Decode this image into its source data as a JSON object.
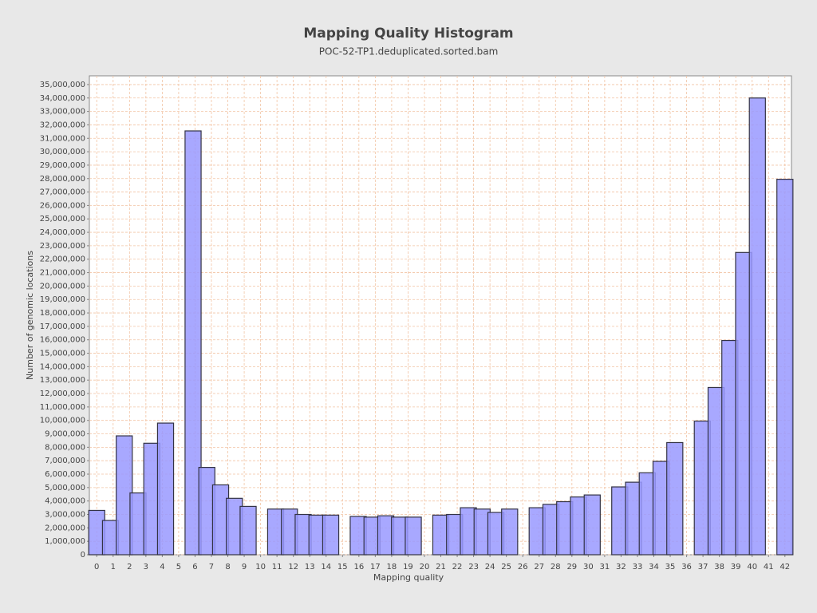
{
  "chart_data": {
    "type": "bar",
    "title": "Mapping Quality Histogram",
    "subtitle": "POC-52-TP1.deduplicated.sorted.bam",
    "x_label": "Mapping quality",
    "y_label": "Number of genomic locations",
    "x": [
      0,
      0.84,
      1.68,
      2.52,
      3.36,
      4.2,
      5.88,
      6.72,
      7.56,
      8.4,
      9.24,
      10.92,
      11.76,
      12.6,
      13.44,
      14.28,
      15.96,
      16.8,
      17.64,
      18.48,
      19.32,
      21,
      21.84,
      22.68,
      23.52,
      24.36,
      25.2,
      26.88,
      27.72,
      28.56,
      29.4,
      30.24,
      31.92,
      32.76,
      33.6,
      34.44,
      35.28,
      36.96,
      37.8,
      38.64,
      39.48,
      40.32,
      42
    ],
    "values": [
      3300000,
      2550000,
      8850000,
      4600000,
      8300000,
      9800000,
      31550000,
      6500000,
      5200000,
      4200000,
      3600000,
      3400000,
      3400000,
      3000000,
      2950000,
      2950000,
      2850000,
      2800000,
      2900000,
      2800000,
      2800000,
      2950000,
      3000000,
      3500000,
      3400000,
      3150000,
      3400000,
      3500000,
      3750000,
      3950000,
      4300000,
      4450000,
      5050000,
      5400000,
      6100000,
      6950000,
      8350000,
      9950000,
      12450000,
      15950000,
      22500000,
      34000000,
      27950000
    ],
    "color": "#9999ff",
    "grid": true,
    "xlim": [
      -0.45,
      42.4
    ],
    "ylim": [
      0,
      35650000
    ],
    "xticks": [
      0,
      1,
      2,
      3,
      4,
      5,
      6,
      7,
      8,
      9,
      10,
      11,
      12,
      13,
      14,
      15,
      16,
      17,
      18,
      19,
      20,
      21,
      22,
      23,
      24,
      25,
      26,
      27,
      28,
      29,
      30,
      31,
      32,
      33,
      34,
      35,
      36,
      37,
      38,
      39,
      40,
      41,
      42
    ],
    "yticks": [
      {
        "value": 0,
        "label": "0"
      },
      {
        "value": 1000000,
        "label": "1,000,000"
      },
      {
        "value": 2000000,
        "label": "2,000,000"
      },
      {
        "value": 3000000,
        "label": "3,000,000"
      },
      {
        "value": 4000000,
        "label": "4,000,000"
      },
      {
        "value": 5000000,
        "label": "5,000,000"
      },
      {
        "value": 6000000,
        "label": "6,000,000"
      },
      {
        "value": 7000000,
        "label": "7,000,000"
      },
      {
        "value": 8000000,
        "label": "8,000,000"
      },
      {
        "value": 9000000,
        "label": "9,000,000"
      },
      {
        "value": 10000000,
        "label": "10,000,000"
      },
      {
        "value": 11000000,
        "label": "11,000,000"
      },
      {
        "value": 12000000,
        "label": "12,000,000"
      },
      {
        "value": 13000000,
        "label": "13,000,000"
      },
      {
        "value": 14000000,
        "label": "14,000,000"
      },
      {
        "value": 15000000,
        "label": "15,000,000"
      },
      {
        "value": 16000000,
        "label": "16,000,000"
      },
      {
        "value": 17000000,
        "label": "17,000,000"
      },
      {
        "value": 18000000,
        "label": "18,000,000"
      },
      {
        "value": 19000000,
        "label": "19,000,000"
      },
      {
        "value": 20000000,
        "label": "20,000,000"
      },
      {
        "value": 21000000,
        "label": "21,000,000"
      },
      {
        "value": 22000000,
        "label": "22,000,000"
      },
      {
        "value": 23000000,
        "label": "23,000,000"
      },
      {
        "value": 24000000,
        "label": "24,000,000"
      },
      {
        "value": 25000000,
        "label": "25,000,000"
      },
      {
        "value": 26000000,
        "label": "26,000,000"
      },
      {
        "value": 27000000,
        "label": "27,000,000"
      },
      {
        "value": 28000000,
        "label": "28,000,000"
      },
      {
        "value": 29000000,
        "label": "29,000,000"
      },
      {
        "value": 30000000,
        "label": "30,000,000"
      },
      {
        "value": 31000000,
        "label": "31,000,000"
      },
      {
        "value": 32000000,
        "label": "32,000,000"
      },
      {
        "value": 33000000,
        "label": "33,000,000"
      },
      {
        "value": 34000000,
        "label": "34,000,000"
      },
      {
        "value": 35000000,
        "label": "35,000,000"
      }
    ]
  }
}
